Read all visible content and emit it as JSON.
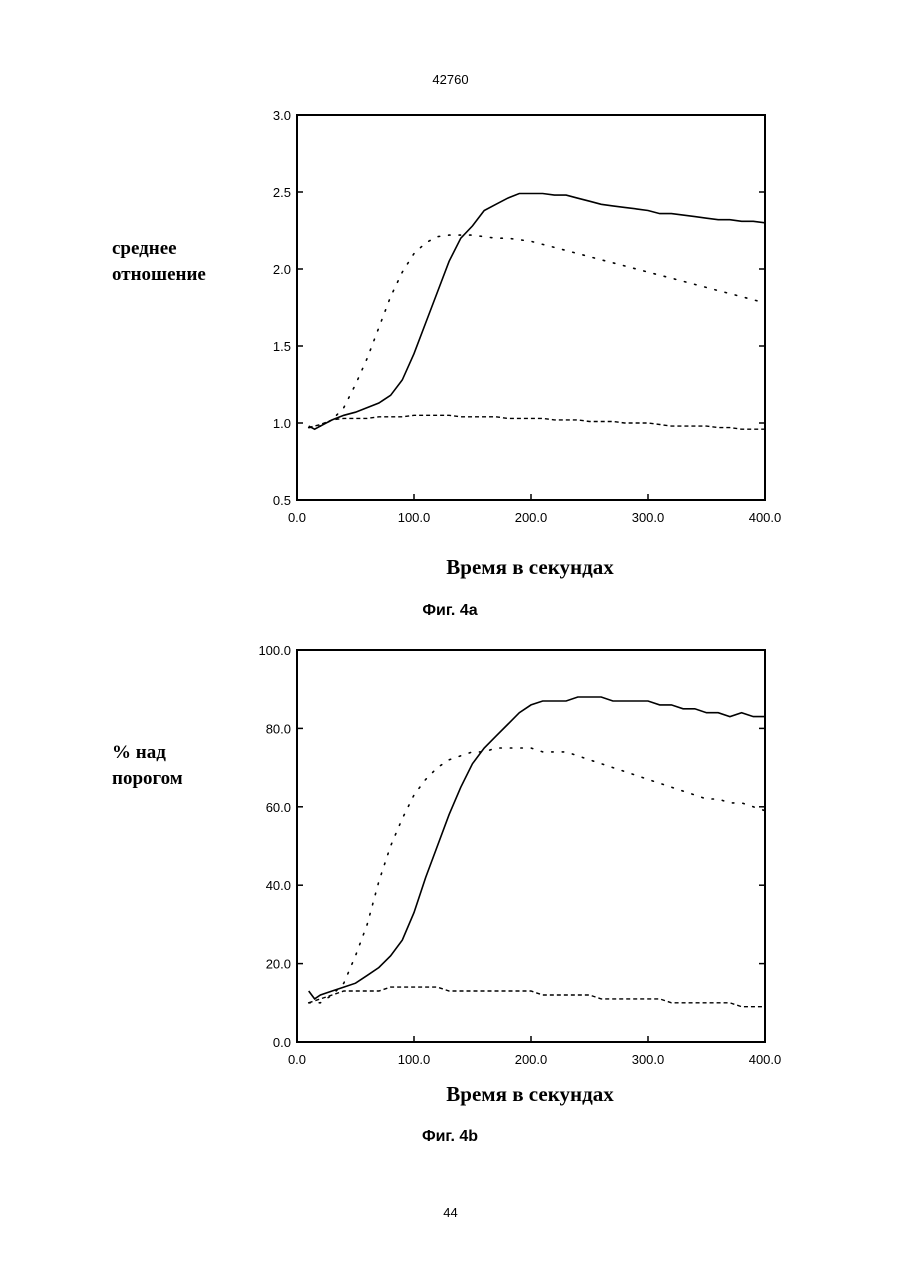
{
  "page": {
    "header": "42760",
    "footer": "44"
  },
  "chart_data": [
    {
      "type": "line",
      "caption": "Фиг. 4a",
      "xlabel": "Время в секундах",
      "ylabel": "среднее\nотношение",
      "xlim": [
        0,
        400
      ],
      "ylim": [
        0.5,
        3.0
      ],
      "x_ticks": [
        "0.0",
        "100.0",
        "200.0",
        "300.0",
        "400.0"
      ],
      "y_ticks": [
        "0.5",
        "1.0",
        "1.5",
        "2.0",
        "2.5",
        "3.0"
      ],
      "series": [
        {
          "style": "solid",
          "x": [
            10,
            15,
            20,
            30,
            40,
            50,
            60,
            70,
            80,
            90,
            100,
            110,
            120,
            130,
            140,
            150,
            160,
            170,
            180,
            190,
            200,
            210,
            220,
            230,
            240,
            250,
            260,
            270,
            280,
            290,
            300,
            310,
            320,
            330,
            340,
            350,
            360,
            370,
            380,
            390,
            400
          ],
          "y": [
            0.98,
            0.96,
            0.98,
            1.02,
            1.05,
            1.07,
            1.1,
            1.13,
            1.18,
            1.28,
            1.45,
            1.65,
            1.85,
            2.05,
            2.2,
            2.28,
            2.38,
            2.42,
            2.46,
            2.49,
            2.49,
            2.49,
            2.48,
            2.48,
            2.46,
            2.44,
            2.42,
            2.41,
            2.4,
            2.39,
            2.38,
            2.36,
            2.36,
            2.35,
            2.34,
            2.33,
            2.32,
            2.32,
            2.31,
            2.31,
            2.3
          ]
        },
        {
          "style": "dotted",
          "x": [
            10,
            20,
            30,
            40,
            50,
            60,
            70,
            80,
            90,
            100,
            110,
            120,
            130,
            140,
            150,
            160,
            170,
            180,
            190,
            200,
            210,
            220,
            230,
            240,
            250,
            260,
            270,
            280,
            290,
            300,
            310,
            320,
            330,
            340,
            350,
            360,
            370,
            380,
            390,
            400
          ],
          "y": [
            0.97,
            0.98,
            1.02,
            1.1,
            1.25,
            1.42,
            1.62,
            1.82,
            1.98,
            2.1,
            2.17,
            2.21,
            2.22,
            2.22,
            2.22,
            2.21,
            2.2,
            2.2,
            2.19,
            2.18,
            2.16,
            2.14,
            2.12,
            2.1,
            2.08,
            2.06,
            2.04,
            2.02,
            2.0,
            1.98,
            1.96,
            1.94,
            1.92,
            1.9,
            1.88,
            1.86,
            1.84,
            1.82,
            1.8,
            1.78
          ]
        },
        {
          "style": "dashed",
          "x": [
            10,
            20,
            30,
            40,
            50,
            60,
            70,
            80,
            90,
            100,
            110,
            120,
            130,
            140,
            150,
            160,
            170,
            180,
            190,
            200,
            210,
            220,
            230,
            240,
            250,
            260,
            270,
            280,
            290,
            300,
            310,
            320,
            330,
            340,
            350,
            360,
            370,
            380,
            390,
            400
          ],
          "y": [
            0.97,
            0.99,
            1.02,
            1.03,
            1.03,
            1.03,
            1.04,
            1.04,
            1.04,
            1.05,
            1.05,
            1.05,
            1.05,
            1.04,
            1.04,
            1.04,
            1.04,
            1.03,
            1.03,
            1.03,
            1.03,
            1.02,
            1.02,
            1.02,
            1.01,
            1.01,
            1.01,
            1.0,
            1.0,
            1.0,
            0.99,
            0.98,
            0.98,
            0.98,
            0.98,
            0.97,
            0.97,
            0.96,
            0.96,
            0.96
          ]
        }
      ]
    },
    {
      "type": "line",
      "caption": "Фиг. 4b",
      "xlabel": "Время в секундах",
      "ylabel": "%  над\nпорогом",
      "xlim": [
        0,
        400
      ],
      "ylim": [
        0,
        100
      ],
      "x_ticks": [
        "0.0",
        "100.0",
        "200.0",
        "300.0",
        "400.0"
      ],
      "y_ticks": [
        "0.0",
        "20.0",
        "40.0",
        "60.0",
        "80.0",
        "100.0"
      ],
      "series": [
        {
          "style": "solid",
          "x": [
            10,
            15,
            20,
            30,
            40,
            50,
            60,
            70,
            80,
            90,
            100,
            110,
            120,
            130,
            140,
            150,
            160,
            170,
            180,
            190,
            200,
            210,
            220,
            230,
            240,
            250,
            260,
            270,
            280,
            290,
            300,
            310,
            320,
            330,
            340,
            350,
            360,
            370,
            380,
            390,
            400
          ],
          "y": [
            13,
            11,
            12,
            13,
            14,
            15,
            17,
            19,
            22,
            26,
            33,
            42,
            50,
            58,
            65,
            71,
            75,
            78,
            81,
            84,
            86,
            87,
            87,
            87,
            88,
            88,
            88,
            87,
            87,
            87,
            87,
            86,
            86,
            85,
            85,
            84,
            84,
            83,
            84,
            83,
            83
          ]
        },
        {
          "style": "dotted",
          "x": [
            10,
            20,
            30,
            40,
            50,
            60,
            70,
            80,
            90,
            100,
            110,
            120,
            130,
            140,
            150,
            160,
            170,
            180,
            190,
            200,
            210,
            220,
            230,
            240,
            250,
            260,
            270,
            280,
            290,
            300,
            310,
            320,
            330,
            340,
            350,
            360,
            370,
            380,
            390,
            400
          ],
          "y": [
            10,
            10,
            12,
            15,
            22,
            30,
            41,
            50,
            57,
            63,
            67,
            70,
            72,
            73,
            74,
            74,
            75,
            75,
            75,
            75,
            74,
            74,
            74,
            73,
            72,
            71,
            70,
            69,
            68,
            67,
            66,
            65,
            64,
            63,
            62,
            62,
            61,
            61,
            60,
            59
          ]
        },
        {
          "style": "dashed",
          "x": [
            10,
            20,
            30,
            40,
            50,
            60,
            70,
            80,
            90,
            100,
            110,
            120,
            130,
            140,
            150,
            160,
            170,
            180,
            190,
            200,
            210,
            220,
            230,
            240,
            250,
            260,
            270,
            280,
            290,
            300,
            310,
            320,
            330,
            340,
            350,
            360,
            370,
            380,
            390,
            400
          ],
          "y": [
            10,
            11,
            12,
            13,
            13,
            13,
            13,
            14,
            14,
            14,
            14,
            14,
            13,
            13,
            13,
            13,
            13,
            13,
            13,
            13,
            12,
            12,
            12,
            12,
            12,
            11,
            11,
            11,
            11,
            11,
            11,
            10,
            10,
            10,
            10,
            10,
            10,
            9,
            9,
            9
          ]
        }
      ]
    }
  ]
}
